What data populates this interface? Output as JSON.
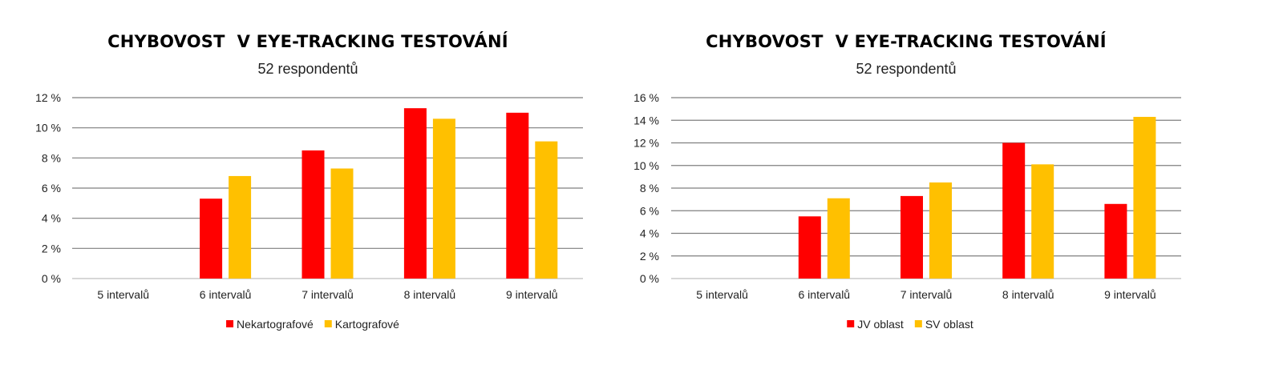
{
  "chart_data": [
    {
      "type": "bar",
      "title": "CHYBOVOST  V EYE-TRACKING TESTOVÁNÍ",
      "subtitle": "52 respondentů",
      "categories": [
        "5 intervalů",
        "6 intervalů",
        "7 intervalů",
        "8 intervalů",
        "9 intervalů"
      ],
      "series": [
        {
          "name": "Nekartografové",
          "color": "#ff0000",
          "values": [
            0,
            5.3,
            8.5,
            11.3,
            11.0
          ]
        },
        {
          "name": "Kartografové",
          "color": "#ffc000",
          "values": [
            0,
            6.8,
            7.3,
            10.6,
            9.1
          ]
        }
      ],
      "yticks": [
        "0 %",
        "2 %",
        "4 %",
        "6 %",
        "8 %",
        "10 %",
        "12 %"
      ],
      "ylim": [
        0,
        12
      ],
      "grid": true,
      "legend_position": "bottom"
    },
    {
      "type": "bar",
      "title": "CHYBOVOST  V EYE-TRACKING TESTOVÁNÍ",
      "subtitle": "52 respondentů",
      "categories": [
        "5 intervalů",
        "6 intervalů",
        "7 intervalů",
        "8 intervalů",
        "9 intervalů"
      ],
      "series": [
        {
          "name": "JV oblast",
          "color": "#ff0000",
          "values": [
            0,
            5.5,
            7.3,
            12.0,
            6.6
          ]
        },
        {
          "name": "SV oblast",
          "color": "#ffc000",
          "values": [
            0,
            7.1,
            8.5,
            10.1,
            14.3
          ]
        }
      ],
      "yticks": [
        "0 %",
        "2 %",
        "4 %",
        "6 %",
        "8 %",
        "10 %",
        "12 %",
        "14 %",
        "16 %"
      ],
      "ylim": [
        0,
        16
      ],
      "grid": true,
      "legend_position": "bottom"
    }
  ]
}
